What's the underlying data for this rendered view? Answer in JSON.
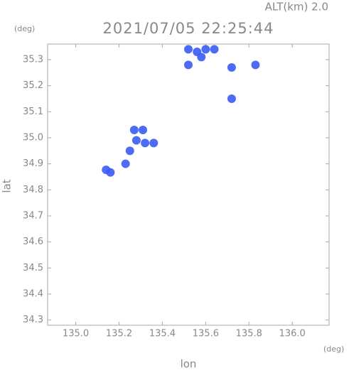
{
  "chart_data": {
    "type": "scatter",
    "title": "2021/07/05 22:25:44",
    "subtitle": "ALT(km) 2.0",
    "x_label": "lon",
    "y_label": "lat",
    "x_unit": "(deg)",
    "y_unit": "(deg)",
    "xlim": [
      134.87,
      136.17
    ],
    "ylim": [
      34.28,
      35.36
    ],
    "xticks": [
      {
        "value": 135,
        "label": "135.0"
      },
      135.2,
      135.4,
      135.6,
      135.8,
      {
        "value": 136,
        "label": "136.0"
      }
    ],
    "yticks": [
      34.3,
      34.4,
      34.5,
      34.6,
      34.7,
      34.8,
      34.9,
      {
        "value": 35,
        "label": "35.0"
      },
      35.1,
      35.2,
      35.3
    ],
    "series": [
      {
        "color": "#3a5cf5",
        "x": [
          135.52,
          135.56,
          135.6,
          135.64,
          135.58,
          135.52,
          135.72,
          135.83,
          135.72,
          135.27,
          135.31,
          135.28,
          135.32,
          135.36,
          135.25,
          135.23,
          135.14,
          135.16
        ],
        "values": [
          35.34,
          35.33,
          35.34,
          35.34,
          35.31,
          35.28,
          35.27,
          35.28,
          35.15,
          35.03,
          35.03,
          34.99,
          34.98,
          34.98,
          34.95,
          34.9,
          34.877,
          34.867
        ]
      }
    ]
  }
}
